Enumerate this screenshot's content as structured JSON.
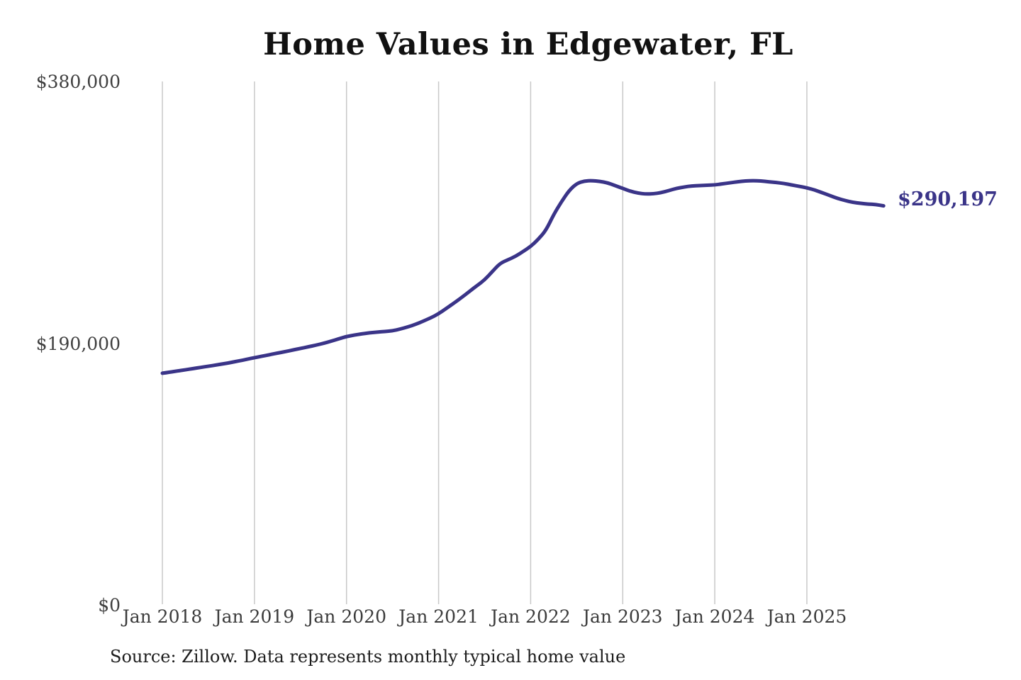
{
  "chart": {
    "title": "Home Values in Edgewater, FL",
    "end_label": "$290,197",
    "source": "Source: Zillow. Data represents monthly typical home value",
    "colors": {
      "line": "#3a3488",
      "end_label": "#3a3488",
      "grid": "#c8c8c8",
      "axis_text": "#3f3f3f",
      "title_text": "#111111",
      "background": "#ffffff"
    }
  },
  "chart_data": {
    "type": "line",
    "title": "Home Values in Edgewater, FL",
    "xlabel": "",
    "ylabel": "",
    "ylim": [
      0,
      380000
    ],
    "grid": "vertical-only",
    "legend": "none",
    "annotation_last_value": "$290,197",
    "source_note": "Source: Zillow. Data represents monthly typical home value",
    "y_ticks": [
      {
        "label": "$380,000",
        "value": 380000
      },
      {
        "label": "$190,000",
        "value": 190000
      },
      {
        "label": "$0",
        "value": 0
      }
    ],
    "x_ticks": [
      {
        "label": "Jan 2018",
        "month_index": 0
      },
      {
        "label": "Jan 2019",
        "month_index": 12
      },
      {
        "label": "Jan 2020",
        "month_index": 24
      },
      {
        "label": "Jan 2021",
        "month_index": 36
      },
      {
        "label": "Jan 2022",
        "month_index": 48
      },
      {
        "label": "Jan 2023",
        "month_index": 60
      },
      {
        "label": "Jan 2024",
        "month_index": 72
      },
      {
        "label": "Jan 2025",
        "month_index": 84
      }
    ],
    "series": [
      {
        "name": "Monthly typical home value",
        "start": "2018-01",
        "end": "2025-11",
        "frequency": "monthly",
        "values": [
          168700,
          169500,
          170400,
          171200,
          172100,
          173000,
          173800,
          174700,
          175600,
          176600,
          177700,
          178800,
          180000,
          181100,
          182200,
          183300,
          184400,
          185600,
          186700,
          187900,
          189100,
          190400,
          192000,
          193700,
          195400,
          196400,
          197300,
          198000,
          198600,
          199000,
          199500,
          200800,
          202400,
          204200,
          206500,
          209000,
          211900,
          215700,
          219600,
          223700,
          228000,
          232300,
          236500,
          242500,
          248400,
          251000,
          253500,
          257000,
          260700,
          266000,
          272500,
          283900,
          293100,
          301300,
          306500,
          308300,
          308500,
          308000,
          307000,
          304900,
          302900,
          300800,
          299500,
          298800,
          299000,
          299800,
          301300,
          302900,
          303900,
          304700,
          304900,
          305200,
          305400,
          306200,
          307000,
          307700,
          308300,
          308500,
          308300,
          307700,
          307200,
          306500,
          305400,
          304400,
          303300,
          301800,
          299800,
          297700,
          295600,
          294100,
          292800,
          292000,
          291500,
          291200,
          290197
        ]
      }
    ],
    "last_value": 290197
  }
}
